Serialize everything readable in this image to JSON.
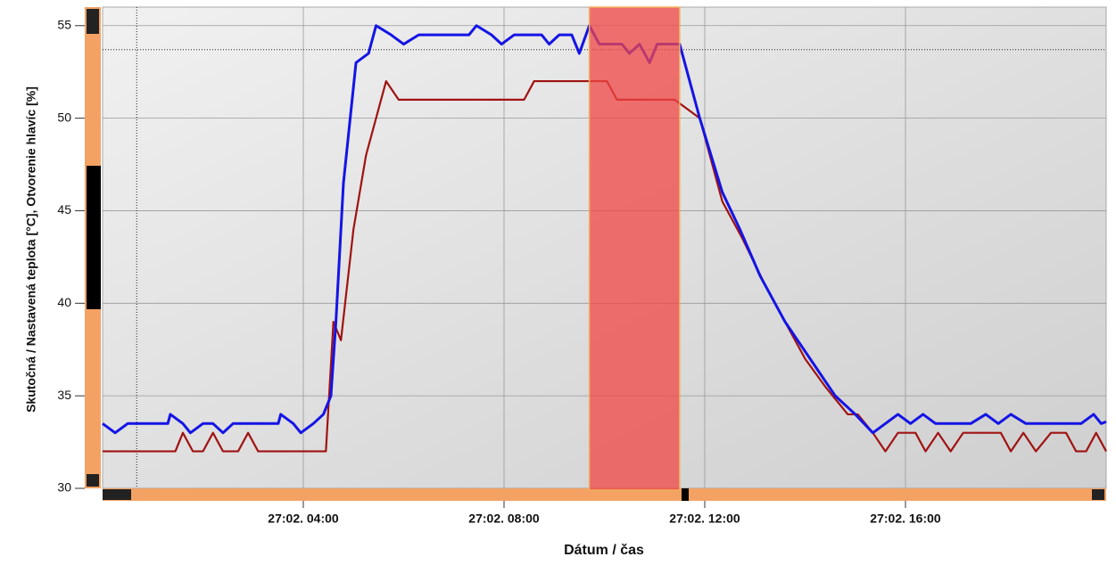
{
  "chart_data": {
    "type": "line",
    "y_label": "Skutočná / Nastavená teplota [°C], Otvorenie hlavíc [%]",
    "x_label": "Dátum / čas",
    "xlim": [
      0,
      20
    ],
    "ylim": [
      30,
      56
    ],
    "yticks": [
      30,
      35,
      40,
      45,
      50,
      55
    ],
    "xticks": [
      {
        "value": 4,
        "label": "27:02. 04:00"
      },
      {
        "value": 8,
        "label": "27:02. 08:00"
      },
      {
        "value": 12,
        "label": "27:02. 12:00"
      },
      {
        "value": 16,
        "label": "27:02. 16:00"
      }
    ],
    "grid": true,
    "highlight_range": [
      9.7,
      11.5
    ],
    "cursor": {
      "x": 0.68,
      "y": 53.7
    },
    "series": [
      {
        "color": "#1414e6",
        "x": [
          0,
          0.25,
          0.5,
          1.3,
          1.35,
          1.6,
          1.75,
          2.0,
          2.2,
          2.4,
          2.6,
          3.5,
          3.55,
          3.8,
          3.95,
          4.2,
          4.4,
          4.55,
          4.65,
          4.8,
          5.05,
          5.3,
          5.45,
          5.75,
          6.0,
          6.3,
          7.3,
          7.45,
          7.75,
          7.95,
          8.2,
          8.75,
          8.9,
          9.1,
          9.35,
          9.5,
          9.7,
          9.9,
          10.35,
          10.5,
          10.7,
          10.9,
          11.05,
          11.5,
          11.9,
          12.35,
          12.7,
          13.1,
          13.6,
          14.1,
          14.6,
          15.0,
          15.35,
          15.6,
          15.85,
          16.1,
          16.35,
          16.6,
          17.3,
          17.6,
          17.85,
          18.1,
          18.4,
          19.5,
          19.75,
          19.9,
          20
        ],
        "values": [
          33.5,
          33,
          33.5,
          33.5,
          34,
          33.5,
          33,
          33.5,
          33.5,
          33,
          33.5,
          33.5,
          34,
          33.5,
          33,
          33.5,
          34,
          35,
          39,
          46.5,
          53,
          53.5,
          55,
          54.5,
          54,
          54.5,
          54.5,
          55,
          54.5,
          54,
          54.5,
          54.5,
          54,
          54.5,
          54.5,
          53.5,
          55,
          54,
          54,
          53.5,
          54,
          53,
          54,
          54,
          50,
          46,
          44,
          41.5,
          39,
          37,
          35,
          34,
          33,
          33.5,
          34,
          33.5,
          34,
          33.5,
          33.5,
          34,
          33.5,
          34,
          33.5,
          33.5,
          34,
          33.5,
          33.6
        ]
      },
      {
        "color": "#a01212",
        "x": [
          0,
          1.45,
          1.6,
          1.8,
          2.0,
          2.2,
          2.4,
          2.7,
          2.9,
          3.1,
          4.45,
          4.6,
          4.75,
          5.0,
          5.25,
          5.45,
          5.65,
          5.9,
          8.4,
          8.6,
          10.05,
          10.25,
          11.4,
          11.9,
          12.35,
          12.75,
          13.2,
          13.6,
          14.0,
          14.4,
          14.85,
          15.05,
          15.35,
          15.6,
          15.85,
          16.2,
          16.4,
          16.65,
          16.9,
          17.15,
          17.9,
          18.1,
          18.35,
          18.6,
          18.9,
          19.2,
          19.4,
          19.6,
          19.8,
          20
        ],
        "values": [
          32,
          32,
          33,
          32,
          32,
          33,
          32,
          32,
          33,
          32,
          32,
          39,
          38,
          44,
          48,
          50,
          52,
          51,
          51,
          52,
          52,
          51,
          51,
          50,
          45.5,
          43.5,
          41,
          39,
          37,
          35.5,
          34,
          34,
          33,
          32,
          33,
          33,
          32,
          33,
          32,
          33,
          33,
          32,
          33,
          32,
          33,
          33,
          32,
          32,
          33,
          32
        ]
      }
    ]
  }
}
